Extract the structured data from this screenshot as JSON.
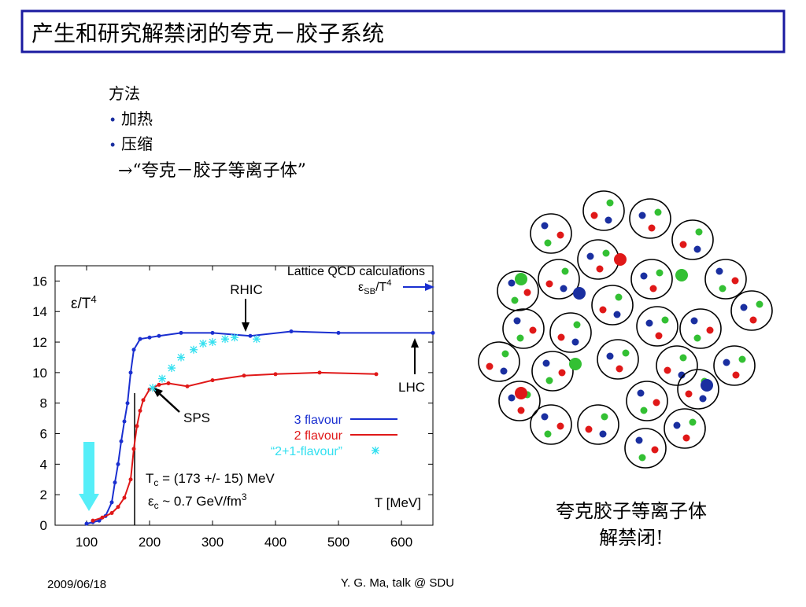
{
  "title": "产生和研究解禁闭的夸克－胶子系统",
  "bullets": {
    "heading": "方法",
    "items": [
      "加热",
      "压缩"
    ],
    "result": "→“夸克－胶子等离子体”"
  },
  "chart_data": {
    "type": "line",
    "top_label": "Lattice QCD calculations",
    "y_label": {
      "main": "ε/T",
      "sup": "4"
    },
    "x_label": "T [MeV]",
    "sb_label": {
      "main": "ε",
      "sub": "SB",
      "rest": "/T",
      "sup": "4"
    },
    "annotations": [
      "RHIC",
      "LHC",
      "SPS"
    ],
    "tc_text": {
      "main": "T",
      "sub": "c",
      "rest": " = (173 +/- 15) MeV"
    },
    "ec_text": {
      "main": "ε",
      "sub": "c",
      "rest": " ~ 0.7 GeV/fm",
      "sup": "3"
    },
    "xlim": [
      50,
      650
    ],
    "ylim": [
      0,
      17
    ],
    "xticks": [
      100,
      200,
      300,
      400,
      500,
      600
    ],
    "yticks": [
      0,
      2,
      4,
      6,
      8,
      10,
      12,
      14,
      16
    ],
    "series": [
      {
        "name": "3 flavour",
        "color": "#1a2fd0",
        "marker": "dot",
        "x": [
          100,
          110,
          120,
          130,
          140,
          145,
          150,
          155,
          160,
          165,
          170,
          175,
          185,
          200,
          215,
          250,
          300,
          360,
          425,
          500,
          650
        ],
        "values": [
          0.1,
          0.2,
          0.3,
          0.6,
          1.5,
          2.8,
          4,
          5.5,
          6.8,
          8,
          10,
          11.5,
          12.2,
          12.3,
          12.4,
          12.6,
          12.6,
          12.4,
          12.7,
          12.6,
          12.6
        ]
      },
      {
        "name": "2 flavour",
        "color": "#e01818",
        "marker": "dot",
        "x": [
          110,
          125,
          140,
          150,
          160,
          170,
          175,
          180,
          185,
          190,
          200,
          215,
          230,
          260,
          300,
          350,
          400,
          470,
          560
        ],
        "values": [
          0.3,
          0.5,
          0.8,
          1.2,
          1.8,
          3,
          5,
          6.5,
          7.5,
          8.2,
          8.9,
          9.2,
          9.3,
          9.1,
          9.5,
          9.8,
          9.9,
          10.0,
          9.9
        ]
      },
      {
        "name": "“2+1-flavour”",
        "color": "#33e0f0",
        "marker": "star",
        "x": [
          205,
          220,
          235,
          250,
          270,
          285,
          300,
          320,
          335,
          370
        ],
        "values": [
          9,
          9.6,
          10.3,
          11.0,
          11.5,
          11.9,
          12.0,
          12.2,
          12.3,
          12.2
        ]
      }
    ]
  },
  "diagram_caption": [
    "夸克胶子等离子体",
    "解禁闭!"
  ],
  "footer": {
    "date": "2009/06/18",
    "author": "Y. G. Ma, talk @ SDU"
  }
}
